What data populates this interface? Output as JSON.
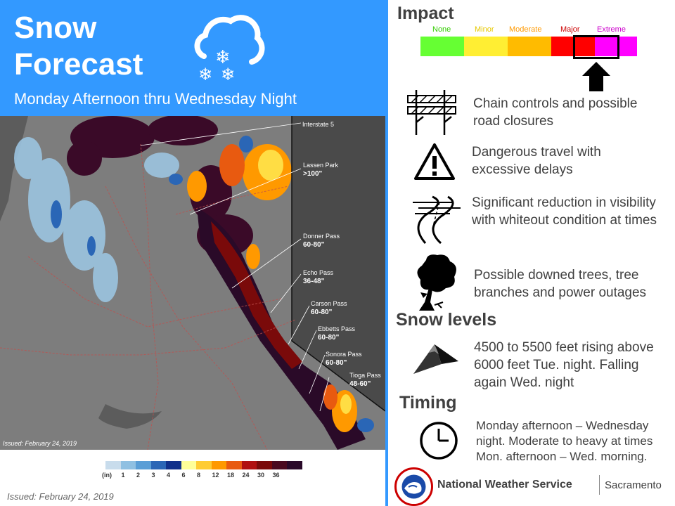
{
  "header": {
    "title_line1": "Snow",
    "title_line2": "Forecast",
    "subtitle": "Monday Afternoon thru Wednesday Night"
  },
  "map": {
    "issued": "Issued: February 24, 2019",
    "labels": [
      {
        "name": "Interstate 5",
        "amount": ""
      },
      {
        "name": "Lassen Park",
        "amount": ">100\""
      },
      {
        "name": "Donner Pass",
        "amount": "60-80\""
      },
      {
        "name": "Echo Pass",
        "amount": "36-48\""
      },
      {
        "name": "Carson Pass",
        "amount": "60-80\""
      },
      {
        "name": "Ebbetts Pass",
        "amount": "60-80\""
      },
      {
        "name": "Sonora Pass",
        "amount": "60-80\""
      },
      {
        "name": "Tioga Pass",
        "amount": "48-60\""
      }
    ]
  },
  "legend": {
    "unit": "(in)",
    "ticks": [
      "1",
      "2",
      "3",
      "4",
      "6",
      "8",
      "12",
      "18",
      "24",
      "30",
      "36"
    ],
    "colors": [
      "#c8dcec",
      "#8fc0e2",
      "#5a9ed6",
      "#2a66b6",
      "#10308a",
      "#ffff99",
      "#ffcc33",
      "#ff9900",
      "#e85a10",
      "#b01010",
      "#7a0a0a",
      "#4a0a20",
      "#2a0a2a"
    ]
  },
  "issued_bottom": "Issued: February 24, 2019",
  "impact": {
    "title": "Impact",
    "levels": [
      {
        "label": "None",
        "color": "#66ff33",
        "text_color": "#33cc00"
      },
      {
        "label": "Minor",
        "color": "#ffee33",
        "text_color": "#e6c800"
      },
      {
        "label": "Moderate",
        "color": "#ffbb00",
        "text_color": "#ff9900"
      },
      {
        "label": "Major",
        "color": "#ff0000",
        "text_color": "#cc0000"
      },
      {
        "label": "Extreme",
        "color": "#ff00ff",
        "text_color": "#cc00cc"
      }
    ],
    "selected": "Major"
  },
  "impacts": [
    {
      "icon": "road-closure-icon",
      "text": "Chain controls and possible road closures"
    },
    {
      "icon": "warning-icon",
      "text": "Dangerous travel with excessive delays"
    },
    {
      "icon": "whiteout-road-icon",
      "text": "Significant reduction in visibility with whiteout condition at times"
    },
    {
      "icon": "downed-tree-icon",
      "text": "Possible downed trees, tree branches and power outages"
    }
  ],
  "snow_levels": {
    "title": "Snow levels",
    "icon": "mountain-icon",
    "text": "4500 to 5500 feet rising above 6000 feet Tue. night. Falling again Wed. night"
  },
  "timing": {
    "title": "Timing",
    "icon": "clock-icon",
    "text": "Monday afternoon – Wednesday night. Moderate to heavy at times Mon. afternoon – Wed. morning."
  },
  "footer": {
    "agency": "National Weather Service",
    "office": "Sacramento"
  }
}
